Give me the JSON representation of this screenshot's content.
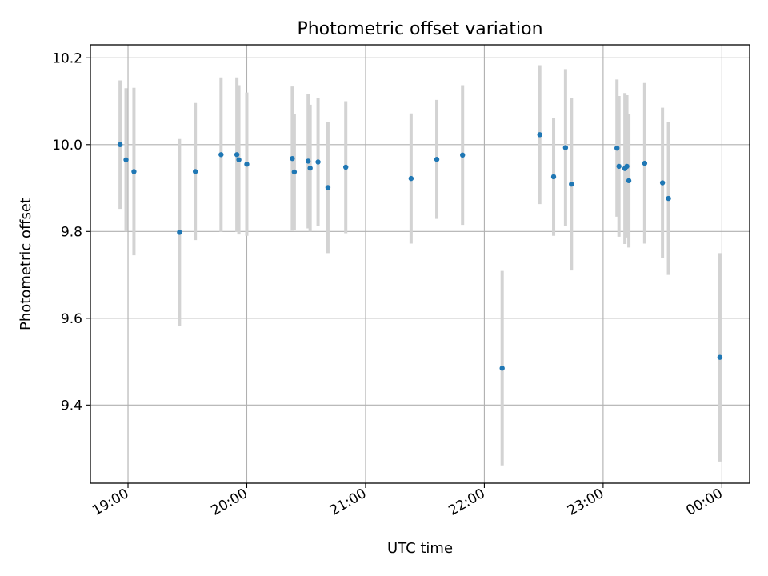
{
  "chart_data": {
    "type": "scatter",
    "title": "Photometric offset variation",
    "xlabel": "UTC time",
    "ylabel": "Photometric offset",
    "x_type": "time",
    "xlim": [
      "18:41",
      "00:14"
    ],
    "ylim": [
      9.22,
      10.23
    ],
    "x_ticks": [
      "19:00",
      "20:00",
      "21:00",
      "22:00",
      "23:00",
      "00:00"
    ],
    "y_ticks": [
      9.4,
      9.6,
      9.8,
      10.0,
      10.2
    ],
    "grid": true,
    "marker_color": "#1f77b4",
    "errorbar_color": "#d3d3d3",
    "points": [
      {
        "x": "18:56",
        "y": 10.0,
        "err": 0.148
      },
      {
        "x": "18:59",
        "y": 9.965,
        "err": 0.165
      },
      {
        "x": "19:03",
        "y": 9.938,
        "err": 0.193
      },
      {
        "x": "19:26",
        "y": 9.798,
        "err": 0.215
      },
      {
        "x": "19:34",
        "y": 9.938,
        "err": 0.158
      },
      {
        "x": "19:47",
        "y": 9.977,
        "err": 0.178
      },
      {
        "x": "19:55",
        "y": 9.977,
        "err": 0.178
      },
      {
        "x": "19:56",
        "y": 9.965,
        "err": 0.172
      },
      {
        "x": "20:00",
        "y": 9.955,
        "err": 0.165
      },
      {
        "x": "20:23",
        "y": 9.968,
        "err": 0.166
      },
      {
        "x": "20:24",
        "y": 9.937,
        "err": 0.134
      },
      {
        "x": "20:31",
        "y": 9.962,
        "err": 0.155
      },
      {
        "x": "20:32",
        "y": 9.946,
        "err": 0.146
      },
      {
        "x": "20:36",
        "y": 9.96,
        "err": 0.148
      },
      {
        "x": "20:41",
        "y": 9.901,
        "err": 0.151
      },
      {
        "x": "20:50",
        "y": 9.948,
        "err": 0.152
      },
      {
        "x": "21:23",
        "y": 9.922,
        "err": 0.15
      },
      {
        "x": "21:36",
        "y": 9.966,
        "err": 0.137
      },
      {
        "x": "21:49",
        "y": 9.976,
        "err": 0.161
      },
      {
        "x": "22:09",
        "y": 9.485,
        "err": 0.224
      },
      {
        "x": "22:28",
        "y": 10.023,
        "err": 0.16
      },
      {
        "x": "22:35",
        "y": 9.926,
        "err": 0.136
      },
      {
        "x": "22:41",
        "y": 9.993,
        "err": 0.181
      },
      {
        "x": "22:44",
        "y": 9.909,
        "err": 0.199
      },
      {
        "x": "23:07",
        "y": 9.992,
        "err": 0.158
      },
      {
        "x": "23:08",
        "y": 9.95,
        "err": 0.162
      },
      {
        "x": "23:11",
        "y": 9.945,
        "err": 0.174
      },
      {
        "x": "23:12",
        "y": 9.95,
        "err": 0.164
      },
      {
        "x": "23:13",
        "y": 9.917,
        "err": 0.154
      },
      {
        "x": "23:21",
        "y": 9.957,
        "err": 0.185
      },
      {
        "x": "23:30",
        "y": 9.912,
        "err": 0.173
      },
      {
        "x": "23:33",
        "y": 9.876,
        "err": 0.176
      },
      {
        "x": "23:59",
        "y": 9.51,
        "err": 0.24
      }
    ]
  }
}
